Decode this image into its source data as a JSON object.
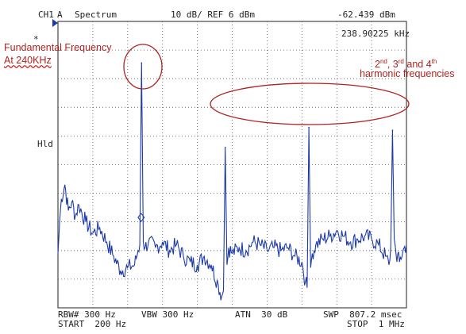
{
  "header": {
    "channel": "CH1",
    "trace": "A",
    "mode": "Spectrum",
    "scale": "10 dB/ REF 6 dB",
    "scale_unit": "m",
    "marker_level": "-62.439 dBm",
    "marker_freq": "238.90225 kHz"
  },
  "side_labels": {
    "star": "*",
    "hld": "Hld"
  },
  "footer": {
    "rbw": "RBW# 300 Hz",
    "vbw": "VBW 300 Hz",
    "atn": "ATN  30 dB",
    "swp": "SWP  807.2 msec",
    "start": "START  200 Hz",
    "stop": "STOP  1 MHz"
  },
  "annotations": {
    "fundamental_line1": "Fundamental Frequency",
    "fundamental_line2": "At 240KHz",
    "harmonics_n2": "2",
    "harmonics_sup1": "nd",
    "harmonics_n3": ", 3",
    "harmonics_sup2": "rd",
    "harmonics_and": " and 4",
    "harmonics_sup3": "th",
    "harmonics_line2": "harmonic frequencies"
  },
  "colors": {
    "trace": "#1c3aa8",
    "grid": "#555555",
    "annotation": "#b0231f"
  },
  "chart_data": {
    "type": "line",
    "x_unit": "Hz",
    "y_unit": "dBm",
    "xlim": [
      200,
      1000000
    ],
    "ylim": [
      -94,
      6
    ],
    "y_per_div_db": 10,
    "grid": true,
    "peaks": [
      {
        "x": 240000,
        "y": -8.5
      },
      {
        "x": 480000,
        "y": -38
      },
      {
        "x": 720000,
        "y": -31
      },
      {
        "x": 960000,
        "y": -32
      }
    ],
    "marker": {
      "x": 238902.25,
      "y": -62.439
    },
    "x": [
      200,
      5000,
      10000,
      20000,
      30000,
      40000,
      50000,
      60000,
      80000,
      100000,
      120000,
      140000,
      160000,
      180000,
      200000,
      220000,
      230000,
      235000,
      240000,
      245000,
      250000,
      260000,
      280000,
      300000,
      320000,
      340000,
      360000,
      380000,
      400000,
      420000,
      440000,
      460000,
      470000,
      475000,
      480000,
      485000,
      490000,
      500000,
      520000,
      540000,
      560000,
      580000,
      600000,
      620000,
      640000,
      660000,
      680000,
      700000,
      710000,
      715000,
      720000,
      725000,
      730000,
      740000,
      760000,
      780000,
      800000,
      820000,
      840000,
      860000,
      880000,
      900000,
      920000,
      940000,
      950000,
      955000,
      960000,
      965000,
      970000,
      980000,
      990000,
      1000000
    ],
    "y": [
      -75,
      -64,
      -56,
      -51,
      -60,
      -57,
      -62,
      -58,
      -64,
      -68,
      -66,
      -71,
      -76,
      -81,
      -80,
      -79,
      -74,
      -72,
      -8.5,
      -71,
      -73,
      -71,
      -73,
      -71,
      -74,
      -72,
      -76,
      -78,
      -79,
      -76,
      -79,
      -86,
      -90,
      -88,
      -38,
      -79,
      -73,
      -75,
      -73,
      -74,
      -71,
      -72,
      -74,
      -73,
      -74,
      -73,
      -76,
      -78,
      -85,
      -87,
      -31,
      -80,
      -75,
      -72,
      -70,
      -69,
      -67,
      -69,
      -71,
      -70,
      -69,
      -70,
      -72,
      -76,
      -79,
      -73,
      -32,
      -70,
      -75,
      -78,
      -74,
      -72
    ]
  }
}
